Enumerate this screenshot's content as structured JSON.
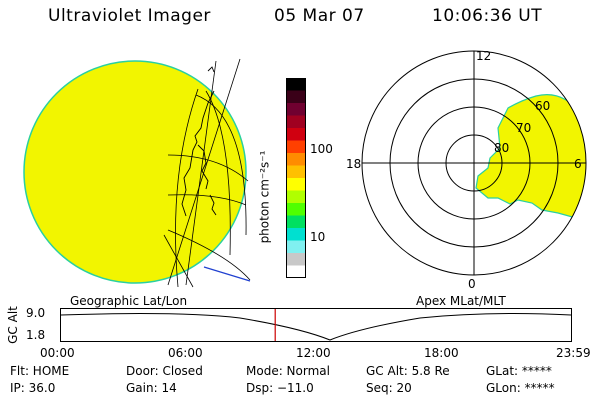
{
  "header": {
    "instrument": "Ultraviolet Imager",
    "date": "05 Mar 07",
    "time": "10:06:36 UT"
  },
  "colorbar": {
    "unit_label": "photon cm⁻²s⁻¹",
    "tick_high": "100",
    "tick_low": "10",
    "colors": [
      "#000000",
      "#3a0018",
      "#700030",
      "#a00020",
      "#d00010",
      "#ff4000",
      "#ff8c00",
      "#ffc000",
      "#ffff00",
      "#b0ff00",
      "#50ff00",
      "#00e060",
      "#00e0d0",
      "#80f0f0",
      "#c8c8c8",
      "#ffffff"
    ]
  },
  "globe_view": {
    "label": "Geographic Lat/Lon",
    "fill_color": "#f2f500",
    "edge_color": "#2ad0a0"
  },
  "polar_view": {
    "label": "Apex MLat/MLT",
    "mlt_labels": {
      "top": "12",
      "left": "18",
      "right": "6",
      "bottom": "0"
    },
    "lat_labels": [
      "60",
      "70",
      "80"
    ]
  },
  "orbit_plot": {
    "y_label": "GC Alt",
    "y_ticks": [
      "9.0",
      "1.8"
    ],
    "x_ticks": [
      "00:00",
      "06:00",
      "12:00",
      "18:00",
      "23:59"
    ],
    "current_time_fraction": 0.42,
    "marker_color": "#cc0000"
  },
  "status": {
    "flt": "Flt: HOME",
    "door": "Door: Closed",
    "mode": "Mode: Normal",
    "gc_alt": "GC Alt: 5.8 Re",
    "glat": "GLat: *****",
    "ip": "IP: 36.0",
    "gain": "Gain: 14",
    "dsp": "Dsp:  −11.0",
    "seq": "Seq: 20",
    "glon": "GLon: *****"
  }
}
